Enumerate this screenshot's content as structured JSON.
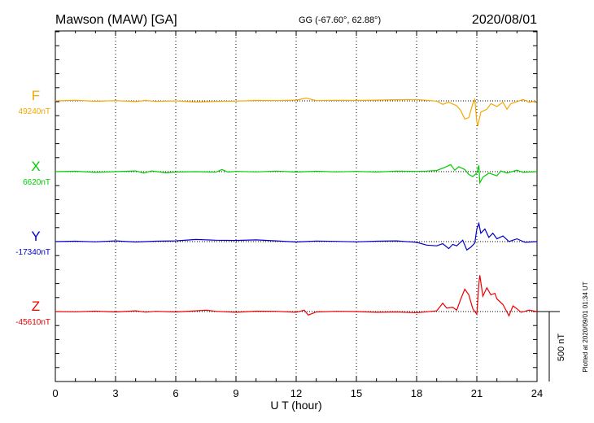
{
  "header": {
    "station": "Mawson (MAW)  [GA]",
    "coords": "GG (-67.60°,  62.88°)",
    "date": "2020/08/01"
  },
  "plotted_note": "Plotted at 2020/09/01 01:34 UT",
  "scale_label": "500 nT",
  "chart_data": {
    "type": "line",
    "xlabel": "U T (hour)",
    "xlim": [
      0,
      24
    ],
    "xticks": [
      "0",
      "3",
      "6",
      "9",
      "12",
      "15",
      "18",
      "21",
      "24"
    ],
    "scale_bar_nT": 500,
    "grid": "dotted vertical lines every 3 hours; dotted baseline per trace",
    "series": [
      {
        "name": "F",
        "baseline_label": "49240nT",
        "baseline_nT": 49240,
        "color": "#f5a800",
        "points": [
          [
            0,
            0
          ],
          [
            1,
            4
          ],
          [
            2,
            -3
          ],
          [
            3,
            2
          ],
          [
            4,
            -5
          ],
          [
            4.5,
            3
          ],
          [
            5,
            -4
          ],
          [
            6,
            0
          ],
          [
            7,
            -8
          ],
          [
            8,
            -4
          ],
          [
            9,
            -2
          ],
          [
            10,
            3
          ],
          [
            11,
            2
          ],
          [
            12,
            5
          ],
          [
            12.5,
            20
          ],
          [
            13,
            2
          ],
          [
            14,
            4
          ],
          [
            15,
            3
          ],
          [
            16,
            5
          ],
          [
            17,
            8
          ],
          [
            18,
            10
          ],
          [
            18.5,
            4
          ],
          [
            19,
            -2
          ],
          [
            19.3,
            -25
          ],
          [
            19.6,
            -10
          ],
          [
            20,
            -35
          ],
          [
            20.2,
            -70
          ],
          [
            20.4,
            -130
          ],
          [
            20.6,
            -120
          ],
          [
            20.8,
            -20
          ],
          [
            20.9,
            10
          ],
          [
            21.0,
            -150
          ],
          [
            21.05,
            -180
          ],
          [
            21.2,
            -80
          ],
          [
            21.5,
            -60
          ],
          [
            21.7,
            -20
          ],
          [
            22,
            -40
          ],
          [
            22.3,
            -10
          ],
          [
            22.5,
            -60
          ],
          [
            22.7,
            -20
          ],
          [
            23,
            -5
          ],
          [
            23.3,
            10
          ],
          [
            23.6,
            -10
          ],
          [
            24,
            0
          ]
        ]
      },
      {
        "name": "X",
        "baseline_label": "6620nT",
        "baseline_nT": 6620,
        "color": "#00cc00",
        "points": [
          [
            0,
            0
          ],
          [
            1,
            3
          ],
          [
            2,
            -5
          ],
          [
            3,
            0
          ],
          [
            4,
            5
          ],
          [
            4.4,
            -10
          ],
          [
            4.8,
            5
          ],
          [
            5.5,
            -8
          ],
          [
            6,
            -3
          ],
          [
            7,
            0
          ],
          [
            8,
            -4
          ],
          [
            8.3,
            15
          ],
          [
            8.6,
            -3
          ],
          [
            9,
            2
          ],
          [
            10,
            -2
          ],
          [
            11,
            4
          ],
          [
            12,
            -3
          ],
          [
            13,
            3
          ],
          [
            14,
            -2
          ],
          [
            15,
            2
          ],
          [
            16,
            -3
          ],
          [
            17,
            4
          ],
          [
            18,
            2
          ],
          [
            18.5,
            4
          ],
          [
            19,
            8
          ],
          [
            19.4,
            30
          ],
          [
            19.7,
            50
          ],
          [
            19.9,
            10
          ],
          [
            20.1,
            35
          ],
          [
            20.4,
            15
          ],
          [
            20.6,
            -20
          ],
          [
            20.8,
            -35
          ],
          [
            21.0,
            -10
          ],
          [
            21.1,
            45
          ],
          [
            21.15,
            -80
          ],
          [
            21.3,
            -40
          ],
          [
            21.6,
            -10
          ],
          [
            22,
            -30
          ],
          [
            22.2,
            5
          ],
          [
            22.5,
            -10
          ],
          [
            23,
            10
          ],
          [
            23.3,
            -5
          ],
          [
            24,
            0
          ]
        ]
      },
      {
        "name": "Y",
        "baseline_label": "-17340nT",
        "baseline_nT": -17340,
        "color": "#0000cc",
        "points": [
          [
            0,
            0
          ],
          [
            1,
            3
          ],
          [
            2,
            -2
          ],
          [
            3,
            5
          ],
          [
            4,
            -3
          ],
          [
            5,
            3
          ],
          [
            6,
            5
          ],
          [
            7,
            15
          ],
          [
            8,
            10
          ],
          [
            9,
            8
          ],
          [
            10,
            12
          ],
          [
            11,
            5
          ],
          [
            12,
            -3
          ],
          [
            13,
            4
          ],
          [
            14,
            2
          ],
          [
            15,
            -2
          ],
          [
            16,
            3
          ],
          [
            17,
            5
          ],
          [
            18,
            -5
          ],
          [
            18.5,
            -25
          ],
          [
            19,
            -30
          ],
          [
            19.3,
            -15
          ],
          [
            19.6,
            -50
          ],
          [
            19.8,
            -20
          ],
          [
            20.0,
            -30
          ],
          [
            20.3,
            10
          ],
          [
            20.5,
            -60
          ],
          [
            20.7,
            -40
          ],
          [
            20.9,
            -10
          ],
          [
            21.0,
            90
          ],
          [
            21.1,
            130
          ],
          [
            21.2,
            60
          ],
          [
            21.4,
            90
          ],
          [
            21.6,
            30
          ],
          [
            21.8,
            60
          ],
          [
            22,
            20
          ],
          [
            22.3,
            40
          ],
          [
            22.6,
            0
          ],
          [
            23,
            20
          ],
          [
            23.4,
            -5
          ],
          [
            24,
            0
          ]
        ]
      },
      {
        "name": "Z",
        "baseline_label": "-45610nT",
        "baseline_nT": -45610,
        "color": "#ee0000",
        "points": [
          [
            0,
            0
          ],
          [
            1,
            -2
          ],
          [
            2,
            3
          ],
          [
            3,
            -3
          ],
          [
            4,
            5
          ],
          [
            4.5,
            -4
          ],
          [
            5,
            2
          ],
          [
            6,
            -3
          ],
          [
            7,
            5
          ],
          [
            7.5,
            10
          ],
          [
            8,
            2
          ],
          [
            9,
            -5
          ],
          [
            10,
            3
          ],
          [
            11,
            2
          ],
          [
            12,
            -5
          ],
          [
            12.4,
            10
          ],
          [
            12.6,
            -25
          ],
          [
            13,
            -3
          ],
          [
            14,
            2
          ],
          [
            15,
            0
          ],
          [
            16,
            -5
          ],
          [
            17,
            -3
          ],
          [
            18,
            -8
          ],
          [
            18.5,
            -2
          ],
          [
            19,
            5
          ],
          [
            19.3,
            60
          ],
          [
            19.5,
            25
          ],
          [
            19.8,
            30
          ],
          [
            20.0,
            10
          ],
          [
            20.2,
            90
          ],
          [
            20.4,
            160
          ],
          [
            20.6,
            120
          ],
          [
            20.8,
            20
          ],
          [
            21.0,
            -20
          ],
          [
            21.1,
            200
          ],
          [
            21.15,
            260
          ],
          [
            21.3,
            110
          ],
          [
            21.5,
            170
          ],
          [
            21.7,
            120
          ],
          [
            21.9,
            130
          ],
          [
            22,
            90
          ],
          [
            22.3,
            50
          ],
          [
            22.6,
            -30
          ],
          [
            22.8,
            40
          ],
          [
            23,
            20
          ],
          [
            23.2,
            -5
          ],
          [
            23.6,
            10
          ],
          [
            24,
            0
          ]
        ]
      }
    ]
  }
}
